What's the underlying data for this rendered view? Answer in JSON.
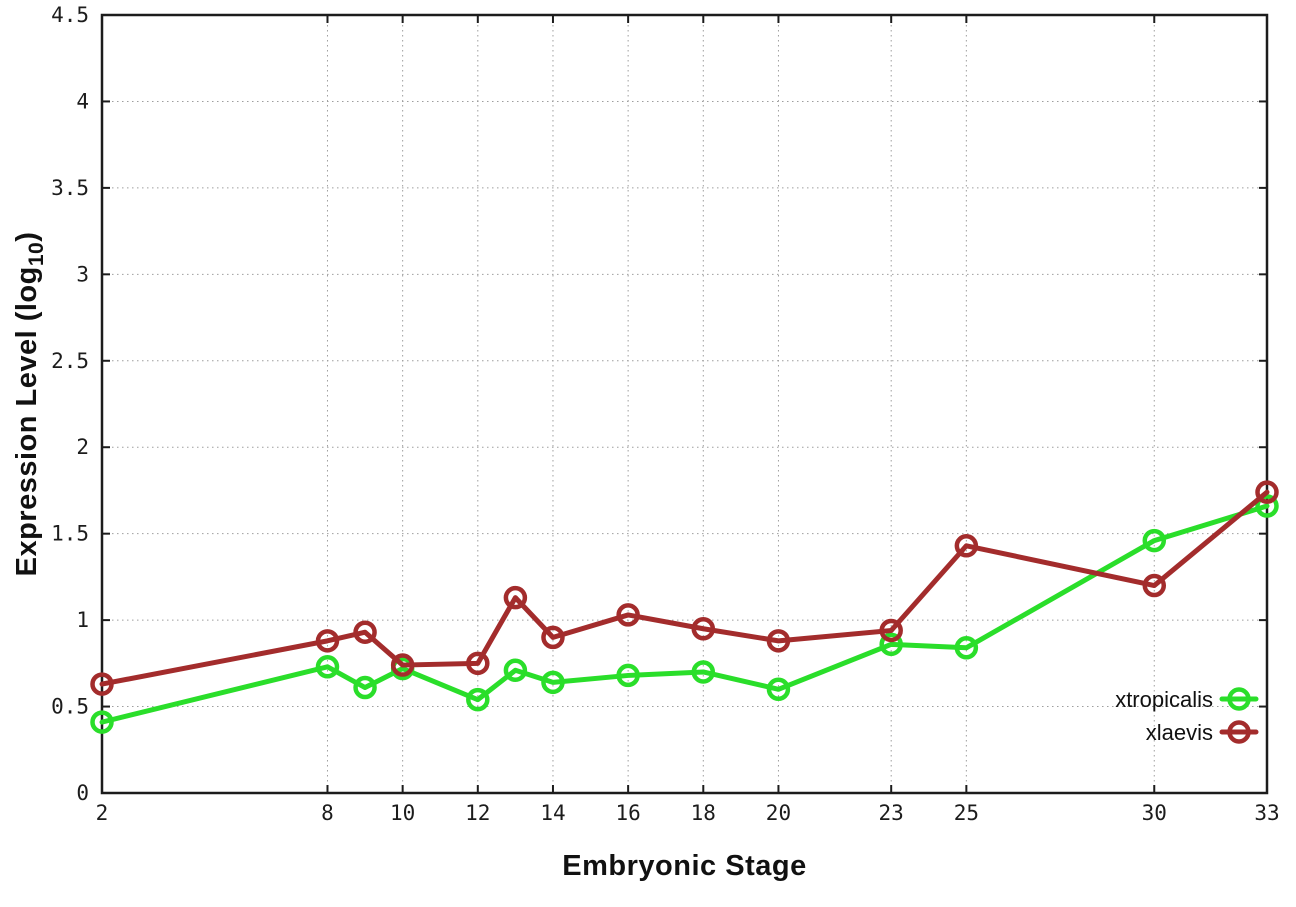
{
  "chart_data": {
    "type": "line",
    "title": "",
    "xlabel": "Embryonic Stage",
    "ylabel": {
      "prefix": "Expression Level (log",
      "sub": "10",
      "suffix": ")"
    },
    "x": [
      2,
      8,
      9,
      10,
      12,
      13,
      14,
      16,
      18,
      20,
      23,
      25,
      30,
      33
    ],
    "series": [
      {
        "name": "xtropicalis",
        "color": "#2ade2a",
        "values": [
          0.41,
          0.73,
          0.61,
          0.72,
          0.54,
          0.71,
          0.64,
          0.68,
          0.7,
          0.6,
          0.86,
          0.84,
          1.46,
          1.66
        ]
      },
      {
        "name": "xlaevis",
        "color": "#a32c2c",
        "values": [
          0.63,
          0.88,
          0.93,
          0.74,
          0.75,
          1.13,
          0.9,
          1.03,
          0.95,
          0.88,
          0.94,
          1.43,
          1.2,
          1.74
        ]
      }
    ],
    "x_ticks": [
      2,
      8,
      10,
      12,
      14,
      16,
      18,
      20,
      23,
      25,
      30,
      33
    ],
    "y_ticks": [
      "0",
      "0.5",
      "1",
      "1.5",
      "2",
      "2.5",
      "3",
      "3.5",
      "4",
      "4.5"
    ],
    "xlim": [
      2,
      33
    ],
    "ylim": [
      0,
      4.5
    ],
    "grid": true,
    "grid_style": "dotted",
    "legend_position": "bottom-right",
    "marker": "open-circle",
    "style": {
      "background": "#ffffff",
      "grid_color": "#9e9e9e",
      "axis_color": "#1c1c1c",
      "line_width": 5
    }
  }
}
